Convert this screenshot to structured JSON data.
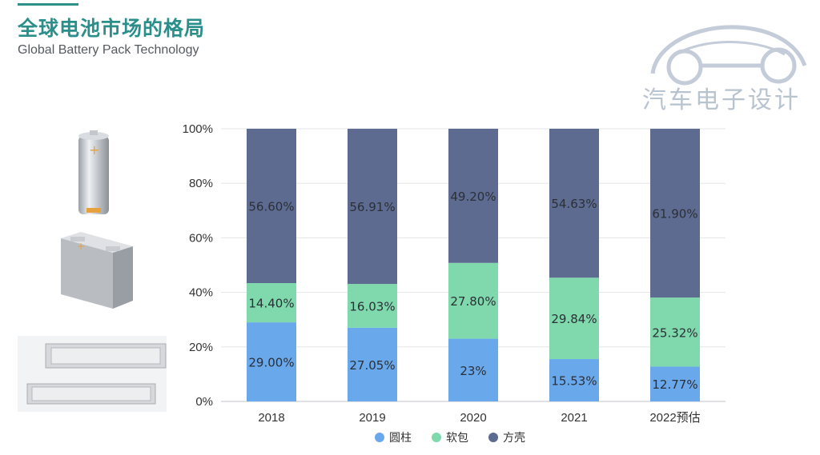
{
  "header": {
    "title": "全球电池市场的格局",
    "subtitle": "Global Battery Pack Technology"
  },
  "logo": {
    "text": "汽车电子设计"
  },
  "images": [
    {
      "icon": "cylindrical-cell"
    },
    {
      "icon": "prismatic-cell"
    },
    {
      "icon": "pouch-cell"
    }
  ],
  "chart_data": {
    "type": "bar",
    "stacked": true,
    "categories": [
      "2018",
      "2019",
      "2020",
      "2021",
      "2022预估"
    ],
    "series": [
      {
        "name": "圆柱",
        "color": "#6aa8ec",
        "values": [
          29.0,
          27.05,
          23.0,
          15.53,
          12.77
        ],
        "labels": [
          "29.00%",
          "27.05%",
          "23%",
          "15.53%",
          "12.77%"
        ]
      },
      {
        "name": "软包",
        "color": "#7fd9ad",
        "values": [
          14.4,
          16.03,
          27.8,
          29.84,
          25.32
        ],
        "labels": [
          "14.40%",
          "16.03%",
          "27.80%",
          "29.84%",
          "25.32%"
        ]
      },
      {
        "name": "方壳",
        "color": "#5d6b91",
        "values": [
          56.6,
          56.91,
          49.2,
          54.63,
          61.9
        ],
        "labels": [
          "56.60%",
          "56.91%",
          "49.20%",
          "54.63%",
          "61.90%"
        ]
      }
    ],
    "yticks": [
      "0%",
      "20%",
      "40%",
      "60%",
      "80%",
      "100%"
    ],
    "ylim": [
      0,
      100
    ],
    "grid": true,
    "legend": "bottom"
  }
}
